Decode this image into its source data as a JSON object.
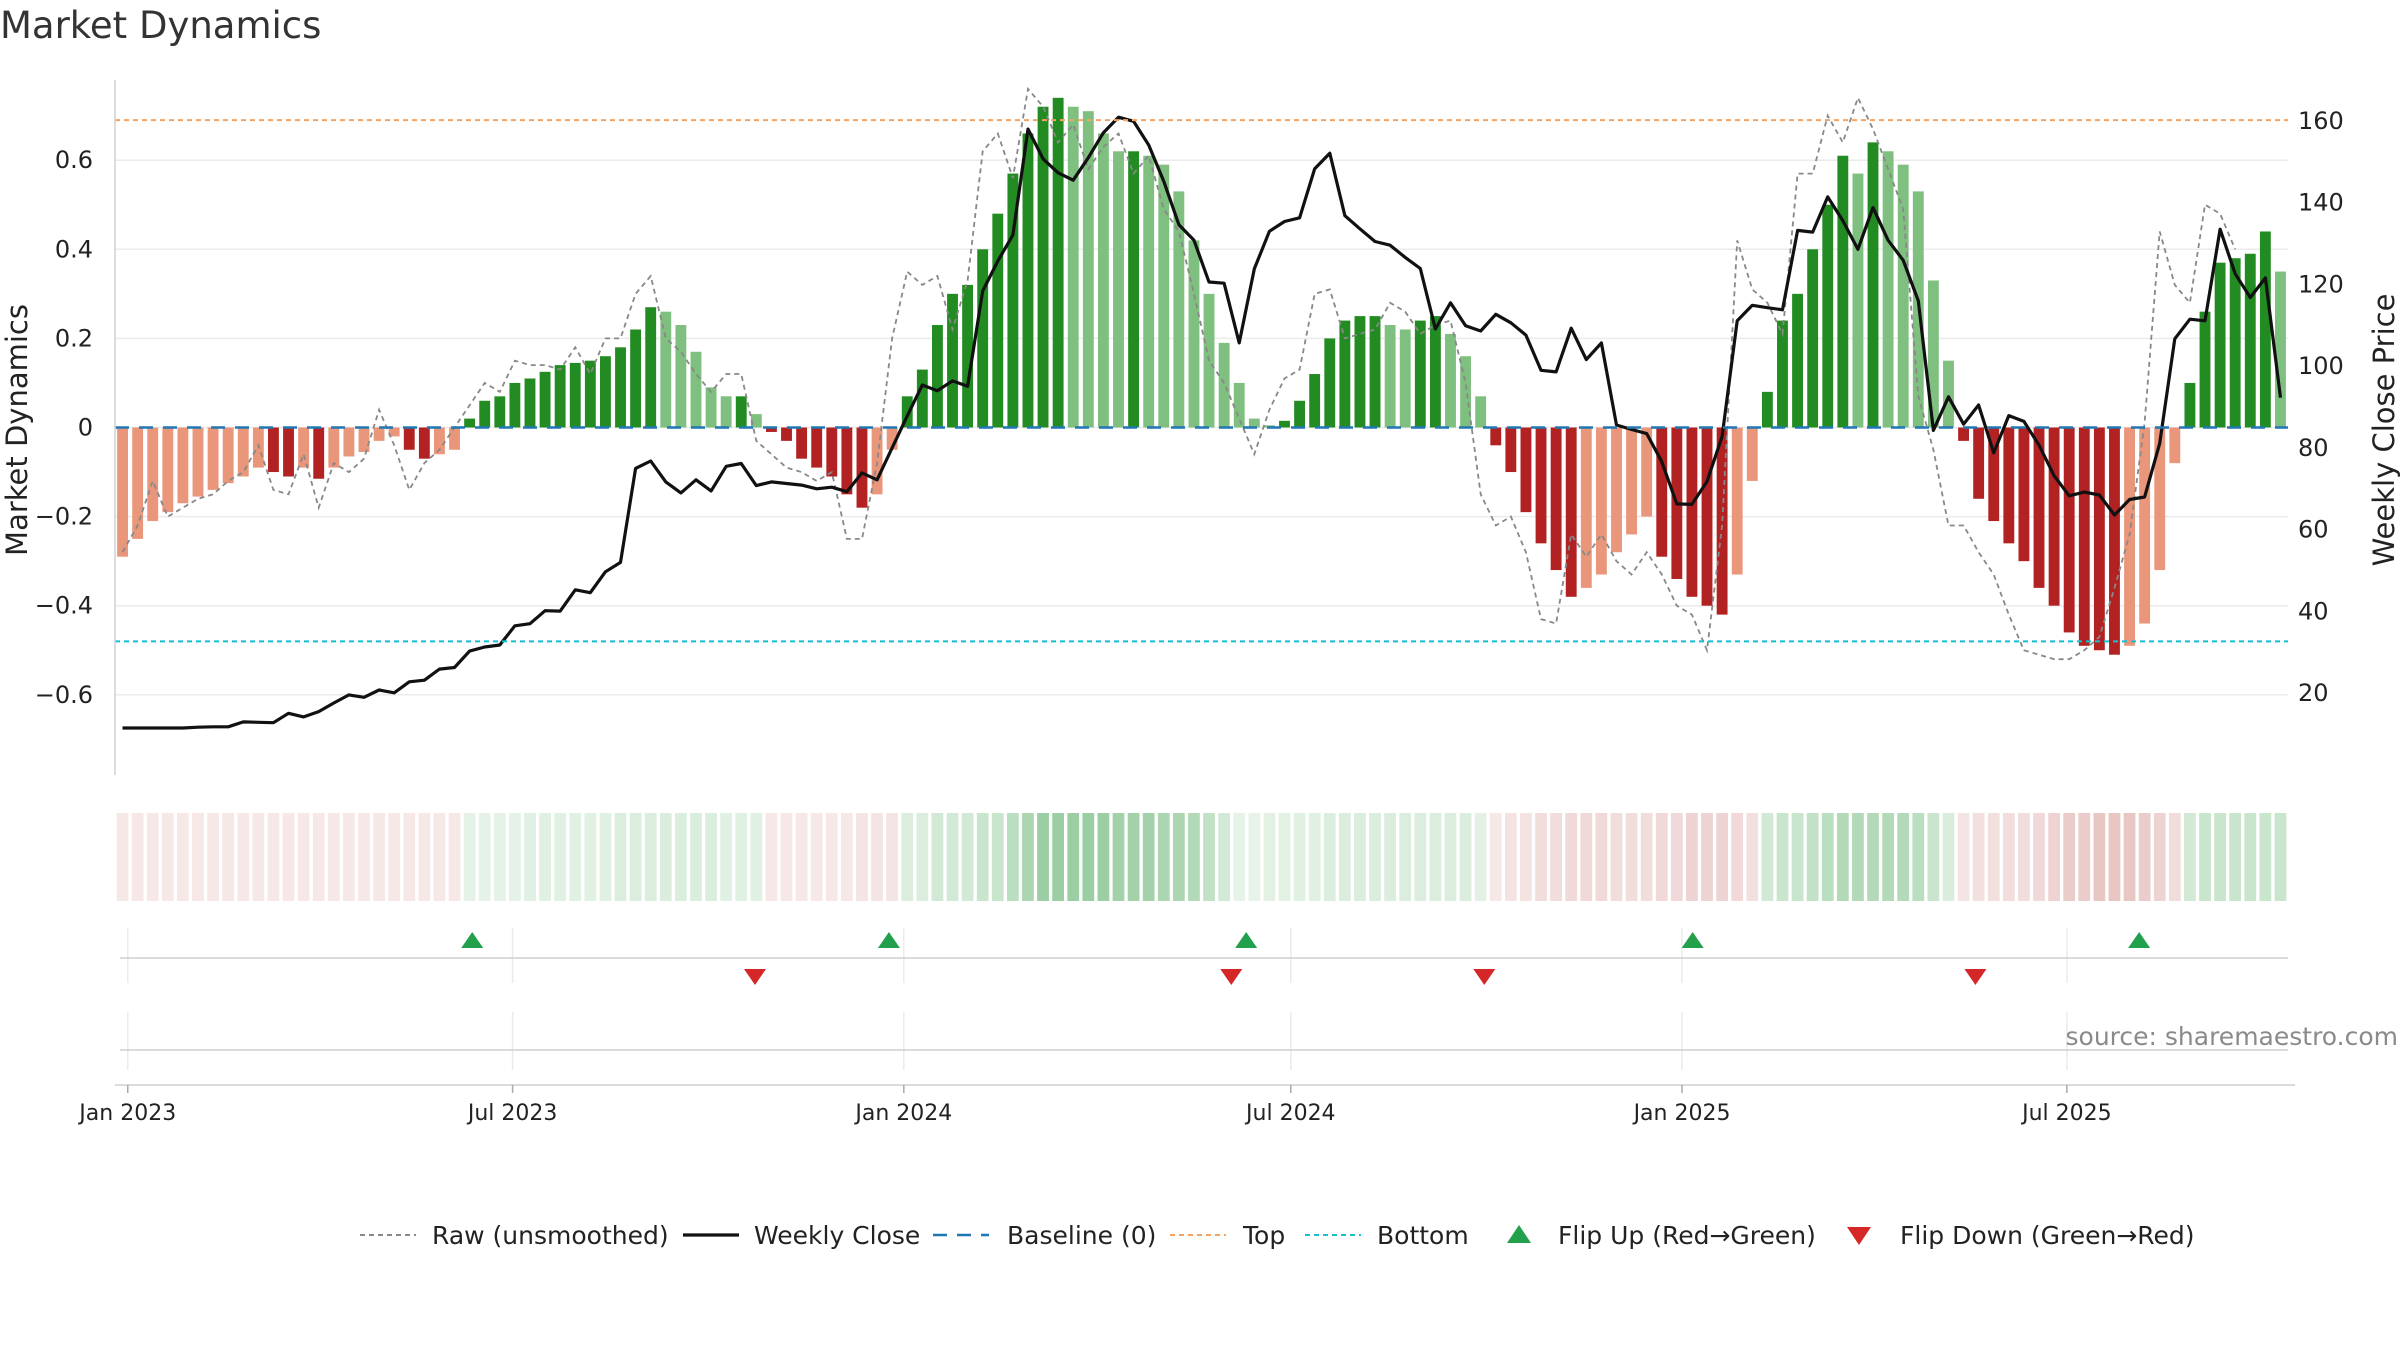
{
  "title": "Market Dynamics",
  "source": "source: sharemaestro.com",
  "colors": {
    "green_strong": "#228b22",
    "green_light": "#7fbf7f",
    "red_strong": "#b22222",
    "red_light": "#e9967a",
    "raw_line": "#888888",
    "close_line": "#111111",
    "baseline": "#1f77b4",
    "top": "#f4a460",
    "bottom": "#17becf",
    "flip_up": "#22a04b",
    "flip_down": "#d62728"
  },
  "legend": [
    {
      "label": "Raw (unsmoothed)",
      "style": "dotted-gray"
    },
    {
      "label": "Weekly Close",
      "style": "solid-black"
    },
    {
      "label": "Baseline (0)",
      "style": "dashed-blue"
    },
    {
      "label": "Top",
      "style": "dotted-orange"
    },
    {
      "label": "Bottom",
      "style": "dotted-cyan"
    },
    {
      "label": "Flip Up (Red→Green)",
      "style": "triangle-up-green"
    },
    {
      "label": "Flip Down (Green→Red)",
      "style": "triangle-down-red"
    }
  ],
  "chart_data": {
    "type": "bar",
    "title": "Market Dynamics",
    "xlabel": "",
    "ylabel": "Market Dynamics",
    "y2label": "Weekly Close Price",
    "ylim": [
      -0.78,
      0.78
    ],
    "y2lim": [
      0,
      170
    ],
    "yticks": [
      -0.6,
      -0.4,
      -0.2,
      0,
      0.2,
      0.4,
      0.6
    ],
    "yticklabels": [
      "−0.6",
      "−0.4",
      "−0.2",
      "0",
      "0.2",
      "0.4",
      "0.6"
    ],
    "y2ticks": [
      20,
      40,
      60,
      80,
      100,
      120,
      140,
      160
    ],
    "x_start": "2022-12-26",
    "x_end": "2025-10-13",
    "xticks": [
      "2023-01-01",
      "2023-07-01",
      "2024-01-01",
      "2024-07-01",
      "2025-01-01",
      "2025-07-01"
    ],
    "xticklabels": [
      "Jan 2023",
      "Jul 2023",
      "Jan 2024",
      "Jul 2024",
      "Jan 2025",
      "Jul 2025"
    ],
    "top_level": 0.69,
    "bottom_level": -0.48,
    "baseline": 0,
    "grid": true,
    "legend_position": "bottom",
    "series": [
      {
        "name": "Market Dynamics",
        "values": [
          -0.29,
          -0.25,
          -0.21,
          -0.19,
          -0.17,
          -0.155,
          -0.14,
          -0.125,
          -0.11,
          -0.09,
          -0.1,
          -0.11,
          -0.09,
          -0.115,
          -0.09,
          -0.065,
          -0.055,
          -0.03,
          -0.02,
          -0.05,
          -0.07,
          -0.06,
          -0.05,
          0.02,
          0.06,
          0.07,
          0.1,
          0.11,
          0.125,
          0.14,
          0.145,
          0.15,
          0.16,
          0.18,
          0.22,
          0.27,
          0.26,
          0.23,
          0.17,
          0.09,
          0.07,
          0.07,
          0.03,
          -0.01,
          -0.03,
          -0.07,
          -0.09,
          -0.11,
          -0.15,
          -0.18,
          -0.15,
          -0.05,
          0.07,
          0.13,
          0.23,
          0.3,
          0.32,
          0.4,
          0.48,
          0.57,
          0.66,
          0.72,
          0.74,
          0.72,
          0.71,
          0.66,
          0.62,
          0.62,
          0.61,
          0.59,
          0.53,
          0.42,
          0.3,
          0.19,
          0.1,
          0.02,
          0.005,
          0.015,
          0.06,
          0.12,
          0.2,
          0.24,
          0.25,
          0.25,
          0.23,
          0.22,
          0.24,
          0.25,
          0.21,
          0.16,
          0.07,
          -0.04,
          -0.1,
          -0.19,
          -0.26,
          -0.32,
          -0.38,
          -0.36,
          -0.33,
          -0.28,
          -0.24,
          -0.2,
          -0.29,
          -0.34,
          -0.38,
          -0.4,
          -0.42,
          -0.33,
          -0.12,
          0.08,
          0.24,
          0.3,
          0.4,
          0.5,
          0.61,
          0.57,
          0.64,
          0.62,
          0.59,
          0.53,
          0.33,
          0.15,
          -0.03,
          -0.16,
          -0.21,
          -0.26,
          -0.3,
          -0.36,
          -0.4,
          -0.46,
          -0.49,
          -0.5,
          -0.51,
          -0.49,
          -0.44,
          -0.32,
          -0.08,
          0.1,
          0.26,
          0.37,
          0.38,
          0.39,
          0.44,
          0.35
        ]
      },
      {
        "name": "Raw (unsmoothed)",
        "values": [
          -0.28,
          -0.22,
          -0.12,
          -0.2,
          -0.18,
          -0.16,
          -0.15,
          -0.12,
          -0.1,
          -0.04,
          -0.14,
          -0.15,
          -0.06,
          -0.18,
          -0.08,
          -0.1,
          -0.07,
          0.04,
          -0.04,
          -0.14,
          -0.08,
          -0.05,
          0,
          0.05,
          0.1,
          0.08,
          0.15,
          0.14,
          0.14,
          0.13,
          0.18,
          0.12,
          0.2,
          0.2,
          0.3,
          0.34,
          0.2,
          0.17,
          0.12,
          0.08,
          0.12,
          0.12,
          -0.03,
          -0.06,
          -0.09,
          -0.1,
          -0.12,
          -0.1,
          -0.25,
          -0.25,
          -0.08,
          0.2,
          0.35,
          0.32,
          0.34,
          0.22,
          0.33,
          0.62,
          0.66,
          0.56,
          0.76,
          0.72,
          0.64,
          0.68,
          0.58,
          0.63,
          0.66,
          0.57,
          0.61,
          0.49,
          0.44,
          0.3,
          0.15,
          0.1,
          0.02,
          -0.06,
          0.04,
          0.11,
          0.13,
          0.3,
          0.31,
          0.2,
          0.21,
          0.22,
          0.28,
          0.26,
          0.21,
          0.23,
          0.24,
          0.1,
          -0.15,
          -0.22,
          -0.2,
          -0.28,
          -0.43,
          -0.44,
          -0.24,
          -0.29,
          -0.24,
          -0.3,
          -0.33,
          -0.28,
          -0.33,
          -0.4,
          -0.42,
          -0.5,
          -0.22,
          0.42,
          0.31,
          0.28,
          0.21,
          0.57,
          0.57,
          0.7,
          0.64,
          0.74,
          0.67,
          0.58,
          0.49,
          0.07,
          -0.05,
          -0.22,
          -0.22,
          -0.28,
          -0.33,
          -0.42,
          -0.5,
          -0.51,
          -0.52,
          -0.52,
          -0.5,
          -0.47,
          -0.36,
          -0.24,
          0.01,
          0.44,
          0.32,
          0.28,
          0.5,
          0.48,
          0.4
        ]
      },
      {
        "name": "Weekly Close",
        "values": [
          11.5,
          11.5,
          11.5,
          11.5,
          11.5,
          11.7,
          11.8,
          11.8,
          13,
          12.9,
          12.8,
          15.1,
          14.2,
          15.5,
          17.6,
          19.6,
          19,
          20.8,
          20.1,
          22.8,
          23.2,
          25.9,
          26.3,
          30.3,
          31.3,
          31.8,
          36.5,
          37,
          40.2,
          40.1,
          45.3,
          44.6,
          49.7,
          52,
          75,
          76.8,
          71.7,
          69,
          72.2,
          69.5,
          75.5,
          76.2,
          70.8,
          71.7,
          71.3,
          70.9,
          70,
          70.4,
          69.3,
          73.9,
          72.2,
          80,
          87.8,
          95.4,
          94,
          96.4,
          95.1,
          118.4,
          125.7,
          132.1,
          158,
          150.7,
          147.3,
          145.5,
          151,
          157.1,
          160.9,
          159.9,
          154.1,
          145.2,
          134.6,
          130.8,
          120.6,
          120.3,
          105.7,
          123.8,
          133,
          135.4,
          136.3,
          148.3,
          152.1,
          136.8,
          133.6,
          130.5,
          129.6,
          126.6,
          123.9,
          109.1,
          115.5,
          109.9,
          108.6,
          112.7,
          110.6,
          107.6,
          99,
          98.6,
          109.3,
          101.6,
          105.7,
          85.6,
          84.5,
          83.5,
          76.6,
          66.3,
          66.2,
          71.8,
          82.8,
          111.1,
          114.9,
          114.3,
          113.8,
          133.2,
          132.8,
          141.4,
          135.6,
          128.6,
          138.8,
          130.8,
          125.9,
          116,
          84.3,
          92.5,
          85.8,
          90.5,
          78.8,
          87.9,
          86.5,
          80.7,
          73.2,
          68.3,
          69.2,
          68.5,
          63.6,
          67.4,
          68,
          81.1,
          106.7,
          111.5,
          111.1,
          133.5,
          122.6,
          116.8,
          121.6,
          92.3
        ]
      }
    ],
    "regime_shades": [
      -0.04,
      -0.04,
      -0.04,
      -0.04,
      -0.04,
      -0.04,
      -0.04,
      -0.04,
      -0.04,
      -0.04,
      -0.04,
      -0.04,
      -0.04,
      -0.04,
      -0.04,
      -0.04,
      -0.04,
      -0.04,
      -0.04,
      -0.04,
      -0.04,
      -0.04,
      -0.04,
      0.03,
      0.03,
      0.03,
      0.03,
      0.06,
      0.06,
      0.06,
      0.06,
      0.06,
      0.06,
      0.09,
      0.09,
      0.09,
      0.09,
      0.09,
      0.09,
      0.09,
      0.06,
      0.06,
      0.06,
      -0.04,
      -0.04,
      -0.04,
      -0.04,
      -0.04,
      -0.04,
      -0.06,
      -0.06,
      -0.06,
      0.09,
      0.09,
      0.15,
      0.15,
      0.15,
      0.2,
      0.2,
      0.3,
      0.4,
      0.5,
      0.5,
      0.5,
      0.5,
      0.5,
      0.45,
      0.45,
      0.45,
      0.4,
      0.4,
      0.35,
      0.25,
      0.15,
      0.02,
      0.02,
      0.04,
      0.04,
      0.06,
      0.06,
      0.09,
      0.09,
      0.09,
      0.09,
      0.09,
      0.09,
      0.09,
      0.09,
      0.09,
      0.09,
      0.04,
      -0.04,
      -0.08,
      -0.08,
      -0.12,
      -0.12,
      -0.15,
      -0.15,
      -0.15,
      -0.12,
      -0.12,
      -0.12,
      -0.15,
      -0.15,
      -0.2,
      -0.2,
      -0.2,
      -0.15,
      -0.1,
      0.15,
      0.2,
      0.2,
      0.25,
      0.3,
      0.35,
      0.35,
      0.35,
      0.35,
      0.35,
      0.3,
      0.2,
      0.1,
      -0.06,
      -0.1,
      -0.1,
      -0.12,
      -0.12,
      -0.15,
      -0.2,
      -0.25,
      -0.25,
      -0.3,
      -0.3,
      -0.3,
      -0.25,
      -0.2,
      -0.12,
      0.15,
      0.2,
      0.2,
      0.2,
      0.2,
      0.2,
      0.2
    ],
    "flip_up_dates": [
      "2023-06-12",
      "2023-12-25",
      "2024-06-10",
      "2025-01-06",
      "2025-08-04"
    ],
    "flip_down_dates": [
      "2023-10-23",
      "2024-06-03",
      "2024-09-30",
      "2025-05-19"
    ]
  }
}
